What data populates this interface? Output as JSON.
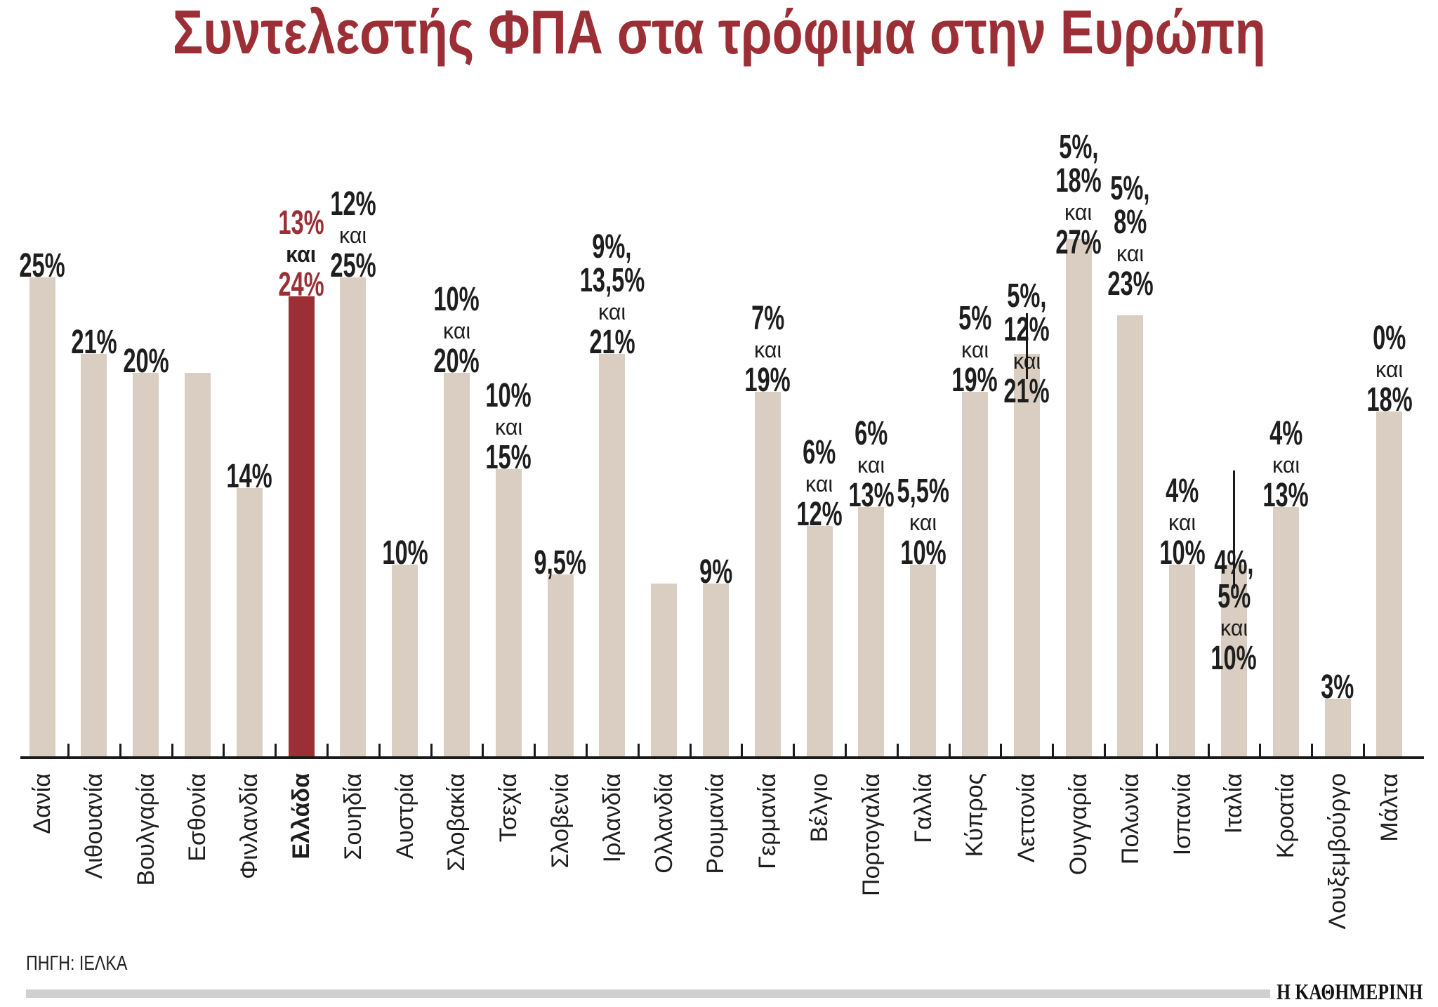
{
  "title": "Συντελεστής ΦΠΑ στα τρόφιμα στην Ευρώπη",
  "source": "ΠΗΓΗ: ΙΕΛΚΑ",
  "brand": "Η ΚΑΘΗΜΕΡΙΝΗ",
  "colors": {
    "title": "#9b2f35",
    "bar": "#dacdc1",
    "highlight": "#9b2f35",
    "text": "#1e1e1e"
  },
  "chart_data": {
    "type": "bar",
    "title": "Συντελεστής ΦΠΑ στα τρόφιμα στην Ευρώπη",
    "xlabel": "",
    "ylabel": "",
    "ylim": [
      0,
      27
    ],
    "grid": false,
    "categories": [
      "Δανία",
      "Λιθουανία",
      "Βουλγαρία",
      "Εσθονία",
      "Φινλανδία",
      "Ελλάδα",
      "Σουηδία",
      "Αυστρία",
      "Σλοβακία",
      "Τσεχία",
      "Σλοβενία",
      "Ιρλανδία",
      "Ολλανδία",
      "Ρουμανία",
      "Γερμανία",
      "Βέλγιο",
      "Πορτογαλία",
      "Γαλλία",
      "Κύπρος",
      "Λεττονία",
      "Ουγγαρία",
      "Πολωνία",
      "Ισπανία",
      "Ιταλία",
      "Κροατία",
      "Λουξεμβούργο",
      "Μάλτα"
    ],
    "values": [
      25,
      21,
      20,
      20,
      14,
      24,
      25,
      10,
      20,
      15,
      9.5,
      21,
      9,
      9,
      19,
      12,
      13,
      10,
      19,
      21,
      27,
      23,
      10,
      10,
      13,
      3,
      18
    ],
    "highlight_index": 5,
    "data_labels": [
      [
        "25%"
      ],
      [
        "21%"
      ],
      [
        "20%"
      ],
      [],
      [
        "14%"
      ],
      [
        "13%",
        "και",
        "24%"
      ],
      [
        "12%",
        "και",
        "25%"
      ],
      [
        "10%"
      ],
      [
        "10%",
        "και",
        "20%"
      ],
      [
        "10%",
        "και",
        "15%"
      ],
      [
        "9,5%"
      ],
      [
        "9%,",
        "13,5%",
        "και",
        "21%"
      ],
      [],
      [
        "9%"
      ],
      [
        "7%",
        "και",
        "19%"
      ],
      [
        "6%",
        "και",
        "12%"
      ],
      [
        "6%",
        "και",
        "13%"
      ],
      [
        "5,5%",
        "και",
        "10%"
      ],
      [
        "5%",
        "και",
        "19%"
      ],
      [
        "5%,",
        "12%",
        "και",
        "21%"
      ],
      [
        "5%,",
        "18%",
        "και",
        "27%"
      ],
      [
        "5%,",
        "8%",
        "και",
        "23%"
      ],
      [
        "4%",
        "και",
        "10%"
      ],
      [
        "4%,",
        "5%",
        "και",
        "10%"
      ],
      [
        "4%",
        "και",
        "13%"
      ],
      [
        "3%"
      ],
      [
        "0%",
        "και",
        "18%"
      ]
    ]
  }
}
